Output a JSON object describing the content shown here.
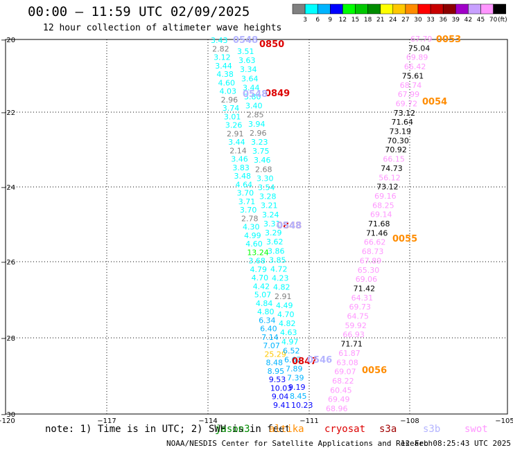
{
  "title": "00:00 – 11:59 UTC 02/09/2025",
  "subtitle": "12 hour collection of altimeter wave heights",
  "legend": {
    "values": [
      "3",
      "6",
      "9",
      "12",
      "15",
      "18",
      "21",
      "24",
      "27",
      "30",
      "33",
      "36",
      "39",
      "42",
      "45",
      "70"
    ],
    "unit": "(ft)",
    "colors": [
      "#808080",
      "#00ffff",
      "#00b4ff",
      "#0000ff",
      "#00ff00",
      "#00c800",
      "#008c00",
      "#ffff00",
      "#ffc800",
      "#ff8c00",
      "#ff0000",
      "#c80000",
      "#8c0000",
      "#a000c8",
      "#c8a0ff",
      "#ff96ff",
      "#000000"
    ]
  },
  "axes": {
    "lon_labels": [
      "−120",
      "−117",
      "−114",
      "−111",
      "−108",
      "−105"
    ],
    "lat_labels": [
      "−20",
      "−22",
      "−24",
      "−26",
      "−28",
      "−30"
    ]
  },
  "passes": [
    {
      "label": "0850",
      "color": "#dd0000"
    },
    {
      "label": "0849",
      "color": "#dd0000"
    },
    {
      "label": "0848",
      "color": "#dd0000"
    },
    {
      "label": "0847",
      "color": "#dd0000"
    },
    {
      "label": "0548",
      "color": "#b4b4ff"
    },
    {
      "label": "0548",
      "color": "#b4b4ff"
    },
    {
      "label": "0548",
      "color": "#b4b4ff"
    },
    {
      "label": "0546",
      "color": "#b4b4ff"
    },
    {
      "label": "0053",
      "color": "#ff8c00"
    },
    {
      "label": "0054",
      "color": "#ff8c00"
    },
    {
      "label": "0055",
      "color": "#ff8c00"
    },
    {
      "label": "0056",
      "color": "#ff8c00"
    }
  ],
  "track_a": [
    "3.43",
    "2.82",
    "3.12",
    "3.44",
    "4.38",
    "4.60",
    "4.03",
    "2.96",
    "3.74",
    "3.01",
    "3.26",
    "2.91",
    "3.44",
    "2.14",
    "3.46",
    "3.83",
    "3.48",
    "4.64",
    "3.70",
    "3.71",
    "3.70",
    "2.78",
    "4.30",
    "4.99",
    "4.60",
    "13.24",
    "3.68",
    "4.79",
    "4.70",
    "4.42",
    "5.07",
    "4.84",
    "4.80",
    "6.34",
    "6.40",
    "7.14",
    "7.07",
    "25.29",
    "8.48",
    "8.95",
    "9.53",
    "10.03",
    "9.04",
    "9.41"
  ],
  "track_b": [
    "3.51",
    "3.63",
    "3.34",
    "3.64",
    "3.44",
    "3.80",
    "3.40",
    "2.85",
    "3.94",
    "2.96",
    "3.23",
    "3.75",
    "3.46",
    "2.68",
    "3.30",
    "3.54",
    "3.28",
    "3.21",
    "3.24",
    "3.31",
    "3.29",
    "3.62",
    "3.86",
    "3.85",
    "4.72",
    "4.23",
    "4.82",
    "2.91",
    "4.49",
    "4.70",
    "4.82",
    "4.63",
    "4.97",
    "6.52",
    "6.67",
    "7.89",
    "7.39",
    "9.19",
    "8.45",
    "10.23"
  ],
  "track_swot": [
    "67.79",
    "75.04",
    "69.89",
    "66.42",
    "75.61",
    "68.74",
    "67.99",
    "69.72",
    "73.12",
    "71.64",
    "73.19",
    "70.30",
    "70.92",
    "66.15",
    "74.73",
    "56.12",
    "73.12",
    "69.16",
    "68.25",
    "69.14",
    "71.68",
    "71.46",
    "66.62",
    "68.73",
    "67.89",
    "65.30",
    "69.06",
    "71.42",
    "64.31",
    "69.73",
    "64.75",
    "59.92",
    "66.93",
    "71.71",
    "61.87",
    "63.08",
    "69.07",
    "68.22",
    "60.45",
    "69.49",
    "68.96"
  ],
  "footnote": "note: 1) Time is in UTC; 2) SWH is in feet",
  "satellites": [
    {
      "name": "jason3",
      "color": "#008c00"
    },
    {
      "name": "altika",
      "color": "#ff8c00"
    },
    {
      "name": "cryosat",
      "color": "#dd0000"
    },
    {
      "name": "s3a",
      "color": "#a00000"
    },
    {
      "name": "s3b",
      "color": "#b4b4ff"
    },
    {
      "name": "swot",
      "color": "#ff96ff"
    }
  ],
  "credit": "NOAA/NESDIS Center for Satellite Applications and Research",
  "timestamp": "12 Feb 08:25:43 UTC 2025"
}
